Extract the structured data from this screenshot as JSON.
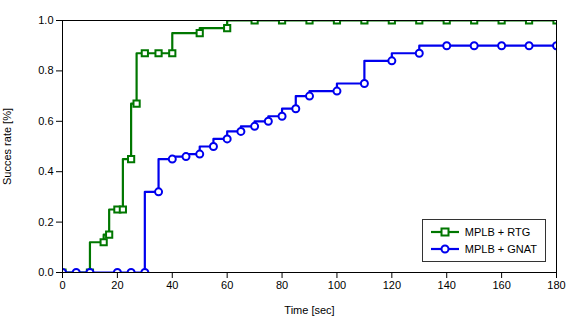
{
  "chart_data": {
    "type": "line",
    "line_style": "steps-pre",
    "xlabel": "Time [sec]",
    "ylabel": "Succes rate [%]",
    "series": [
      {
        "name": "MPLB + RTG",
        "color": "#007700",
        "marker": "square",
        "x": [
          0,
          10,
          15,
          17,
          20,
          22,
          25,
          27,
          30,
          35,
          40,
          50,
          60,
          70,
          80,
          90,
          100,
          110,
          120,
          130,
          140,
          150,
          160,
          170,
          180
        ],
        "values": [
          0.0,
          0.0,
          0.12,
          0.15,
          0.25,
          0.25,
          0.45,
          0.67,
          0.87,
          0.87,
          0.87,
          0.95,
          0.97,
          1.0,
          1.0,
          1.0,
          1.0,
          1.0,
          1.0,
          1.0,
          1.0,
          1.0,
          1.0,
          1.0,
          1.0
        ]
      },
      {
        "name": "MPLB + GNAT",
        "color": "#0000EE",
        "marker": "circle",
        "x": [
          0,
          5,
          10,
          20,
          25,
          30,
          35,
          40,
          45,
          50,
          55,
          60,
          65,
          70,
          75,
          80,
          85,
          90,
          100,
          110,
          120,
          130,
          140,
          150,
          160,
          170,
          180
        ],
        "values": [
          0.0,
          0.0,
          0.0,
          0.0,
          0.0,
          0.0,
          0.32,
          0.45,
          0.46,
          0.47,
          0.5,
          0.53,
          0.56,
          0.58,
          0.6,
          0.62,
          0.65,
          0.7,
          0.72,
          0.75,
          0.84,
          0.87,
          0.9,
          0.9,
          0.9,
          0.9,
          0.9
        ]
      }
    ],
    "xlim": [
      0,
      180
    ],
    "ylim": [
      0.0,
      1.0
    ],
    "xticks": [
      0,
      20,
      40,
      60,
      80,
      100,
      120,
      140,
      160,
      180
    ],
    "yticks": [
      {
        "value": 0,
        "label": "0.0"
      },
      0.2,
      0.4,
      0.6,
      0.8,
      {
        "value": 1,
        "label": "1.0"
      }
    ],
    "grid": false,
    "legend": "lower right"
  }
}
